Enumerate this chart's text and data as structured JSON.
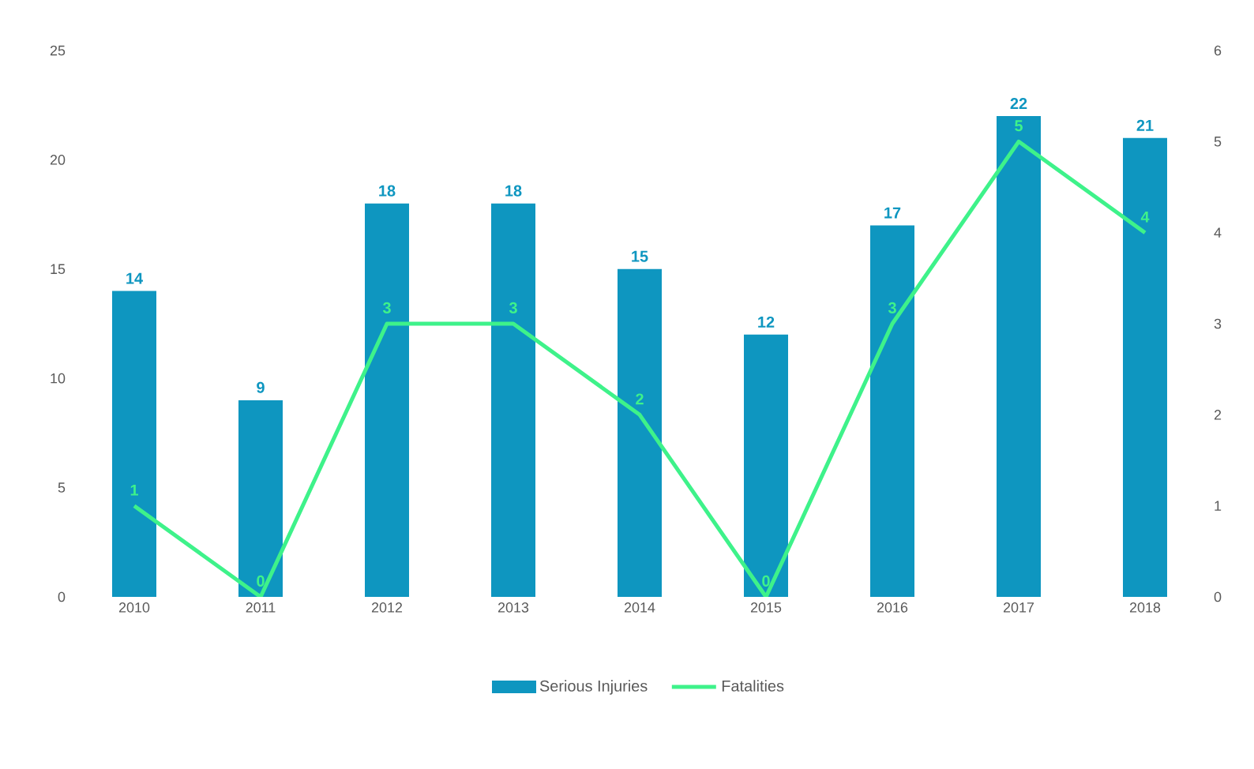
{
  "chart_data": {
    "type": "bar",
    "categories": [
      "2010",
      "2011",
      "2012",
      "2013",
      "2014",
      "2015",
      "2016",
      "2017",
      "2018"
    ],
    "series": [
      {
        "name": "Serious Injuries",
        "type": "bar",
        "color": "#0e96c0",
        "values": [
          14,
          9,
          18,
          18,
          15,
          12,
          17,
          22,
          21
        ]
      },
      {
        "name": "Fatalities",
        "type": "line",
        "axis": "y2",
        "color": "#3ef28a",
        "values": [
          1,
          0,
          3,
          3,
          2,
          0,
          3,
          5,
          4
        ]
      }
    ],
    "ylim": [
      0,
      25
    ],
    "yticks": [
      0,
      5,
      10,
      15,
      20,
      25
    ],
    "y2lim": [
      0,
      6
    ],
    "y2ticks": [
      0,
      1,
      2,
      3,
      4,
      5,
      6
    ],
    "data_labels": true,
    "legend": "bottom",
    "grid": false,
    "marker": "none",
    "line_style": "solid"
  }
}
